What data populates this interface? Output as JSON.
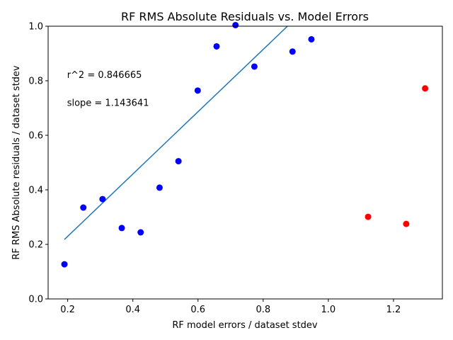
{
  "chart_data": {
    "type": "scatter",
    "title": "RF RMS Absolute Residuals vs. Model Errors",
    "xlabel": "RF model errors / dataset stdev",
    "ylabel": "RF RMS Absolute residuals / dataset stdev",
    "xlim": [
      0.14,
      1.35
    ],
    "ylim": [
      0.0,
      1.0
    ],
    "xticks": [
      0.2,
      0.4,
      0.6,
      0.8,
      1.0,
      1.2
    ],
    "xtick_labels": [
      "0.2",
      "0.4",
      "0.6",
      "0.8",
      "1.0",
      "1.2"
    ],
    "yticks": [
      0.0,
      0.2,
      0.4,
      0.6,
      0.8,
      1.0
    ],
    "ytick_labels": [
      "0.0",
      "0.2",
      "0.4",
      "0.6",
      "0.8",
      "1.0"
    ],
    "grid": false,
    "series": [
      {
        "color": "#0000ff",
        "points": [
          {
            "x": 0.19,
            "y": 0.127
          },
          {
            "x": 0.248,
            "y": 0.335
          },
          {
            "x": 0.307,
            "y": 0.366
          },
          {
            "x": 0.366,
            "y": 0.26
          },
          {
            "x": 0.424,
            "y": 0.244
          },
          {
            "x": 0.482,
            "y": 0.408
          },
          {
            "x": 0.54,
            "y": 0.505
          },
          {
            "x": 0.599,
            "y": 0.764
          },
          {
            "x": 0.657,
            "y": 0.926
          },
          {
            "x": 0.715,
            "y": 1.004
          },
          {
            "x": 0.773,
            "y": 0.852
          },
          {
            "x": 0.89,
            "y": 0.907
          },
          {
            "x": 0.948,
            "y": 0.952
          }
        ]
      },
      {
        "color": "#ff0000",
        "points": [
          {
            "x": 1.122,
            "y": 0.301
          },
          {
            "x": 1.239,
            "y": 0.275
          },
          {
            "x": 1.297,
            "y": 0.772
          }
        ]
      }
    ],
    "fit_line": {
      "color": "#1f77b4",
      "x": [
        0.19,
        0.878
      ],
      "y": [
        0.218,
        1.004
      ]
    },
    "annotations": [
      {
        "text": "r^2 = 0.846665",
        "x": 0.198,
        "y": 0.81
      },
      {
        "text": "slope = 1.143641",
        "x": 0.198,
        "y": 0.708
      }
    ]
  }
}
